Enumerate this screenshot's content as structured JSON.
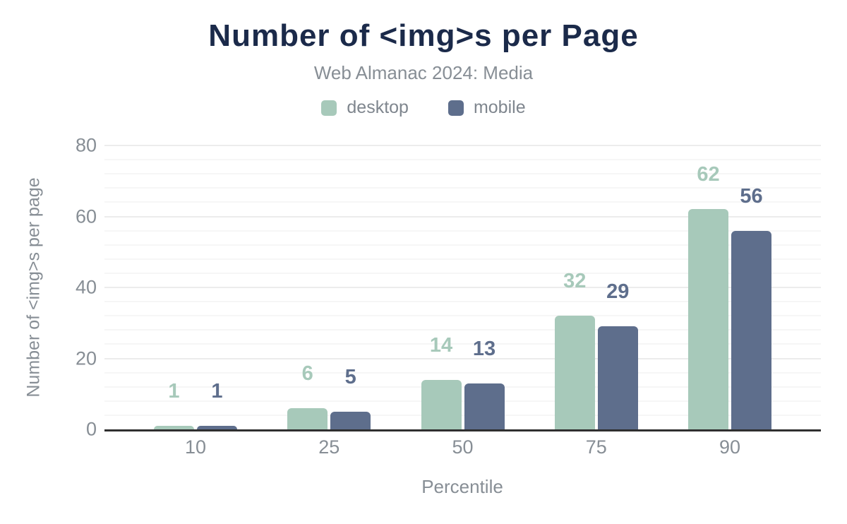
{
  "header": {
    "title": "Number of <img>s per Page",
    "subtitle": "Web Almanac 2024: Media"
  },
  "legend": {
    "items": [
      {
        "label": "desktop",
        "color": "#a7c9ba"
      },
      {
        "label": "mobile",
        "color": "#5e6e8c"
      }
    ]
  },
  "chart_data": {
    "type": "bar",
    "title": "Number of <img>s per Page",
    "subtitle": "Web Almanac 2024: Media",
    "categories": [
      "10",
      "25",
      "50",
      "75",
      "90"
    ],
    "series": [
      {
        "name": "desktop",
        "color": "#a7c9ba",
        "values": [
          1,
          6,
          14,
          32,
          62
        ]
      },
      {
        "name": "mobile",
        "color": "#5e6e8c",
        "values": [
          1,
          5,
          13,
          29,
          56
        ]
      }
    ],
    "xlabel": "Percentile",
    "ylabel": "Number of <img>s per page",
    "ylim": [
      0,
      80
    ],
    "y_ticks": [
      0,
      20,
      40,
      60,
      80
    ],
    "minor_grid_step": 4,
    "grid": true,
    "legend_position": "top",
    "data_labels": true
  },
  "colors": {
    "title": "#1b2a4a",
    "muted_text": "#878e95",
    "legend_text": "#7f868e",
    "axis_line": "#2f2f2f",
    "grid_major": "#ececec",
    "grid_minor": "#f6f6f6",
    "background": "#ffffff"
  }
}
